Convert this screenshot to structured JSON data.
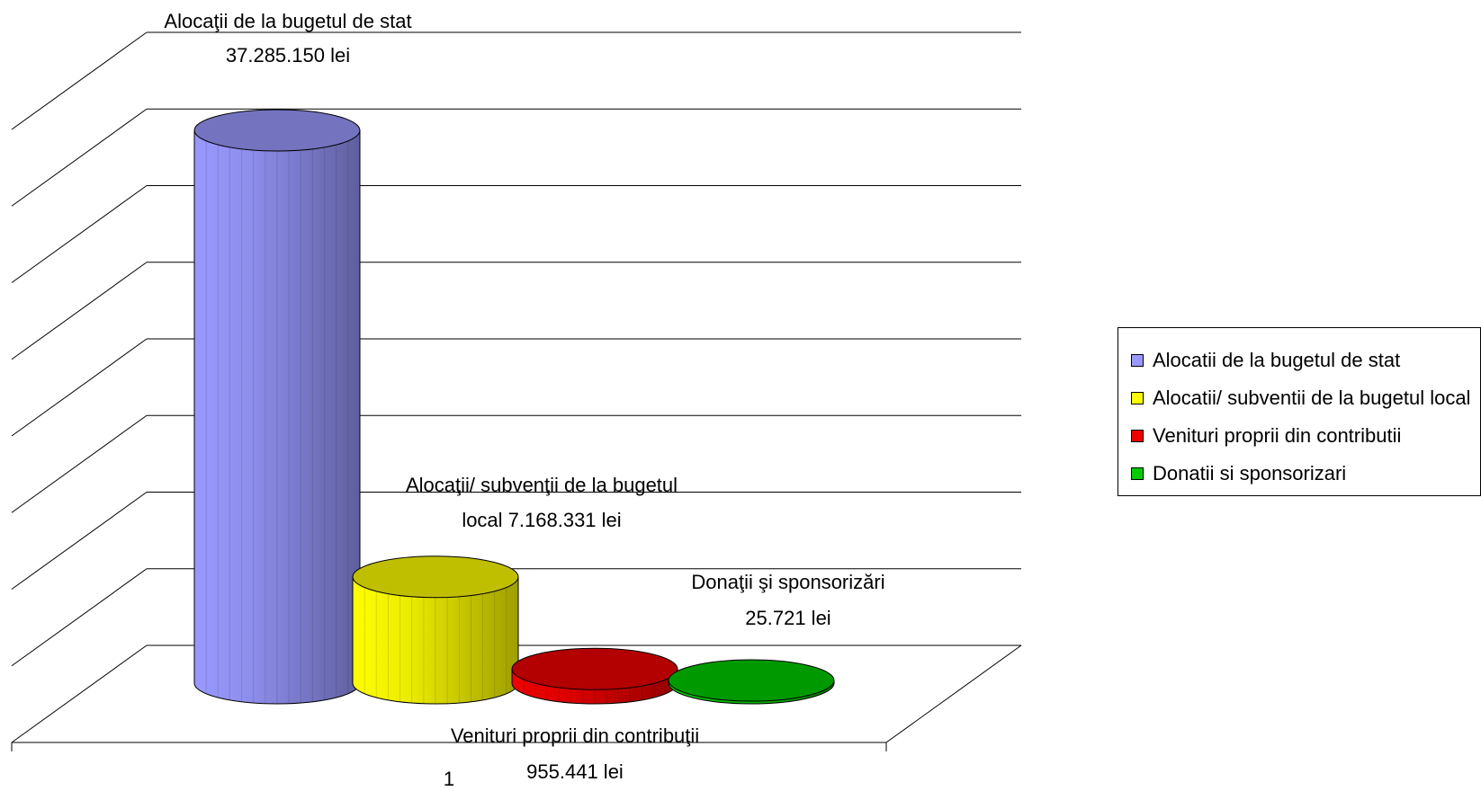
{
  "chart_data": {
    "type": "bar",
    "style": "3d-cylinder",
    "categories": [
      "1"
    ],
    "series": [
      {
        "name": "Alocatii de la bugetul de stat",
        "value": 37285150,
        "color": "#9999ff",
        "label": [
          "Alocaţii de la bugetul de stat",
          "37.285.150 lei"
        ]
      },
      {
        "name": "Alocatii/ subventii de la bugetul local",
        "value": 7168331,
        "color": "#ffff00",
        "label": [
          "Alocaţii/ subvenţii de la bugetul",
          "local 7.168.331 lei"
        ]
      },
      {
        "name": "Venituri proprii din contributii",
        "value": 955441,
        "color": "#ee0000",
        "label": [
          "Venituri proprii din contribuţii",
          "955.441 lei"
        ]
      },
      {
        "name": "Donatii si sponsorizari",
        "value": 25721,
        "color": "#00cc00",
        "label": [
          "Donaţii şi sponsorizări",
          "25.721 lei"
        ]
      }
    ],
    "ylim": [
      0,
      40000000
    ],
    "grid": true,
    "legend_position": "right"
  }
}
